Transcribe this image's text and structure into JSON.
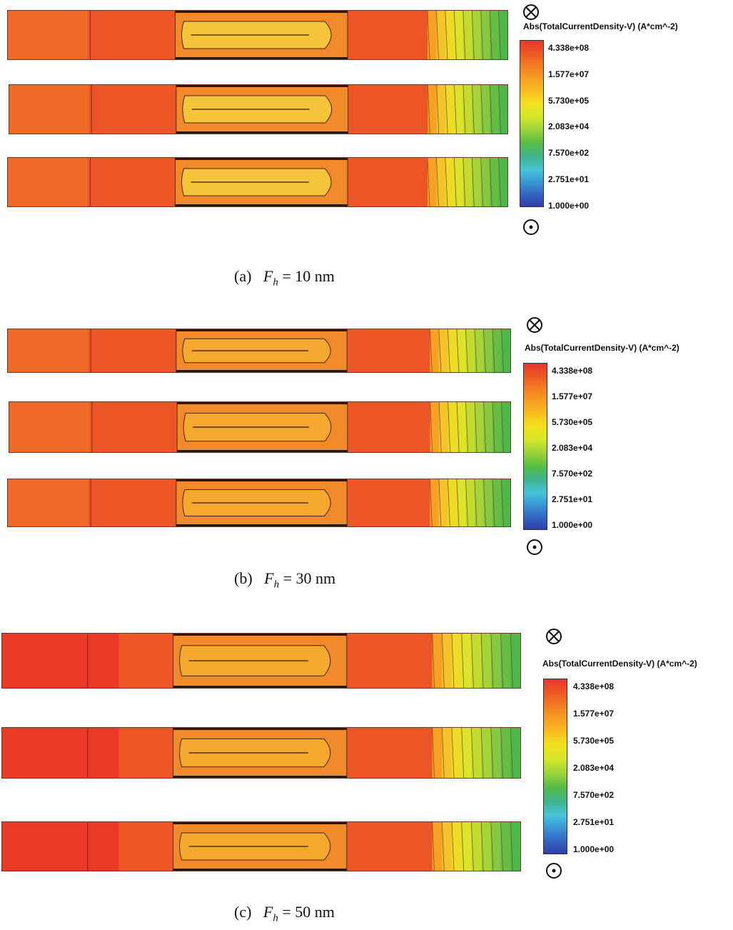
{
  "panels": [
    {
      "label": "(a)",
      "symbol_text": "F",
      "symbol_sub": "h",
      "value_text": "= 10 nm",
      "colorbar": {
        "title": "Abs(TotalCurrentDensity-V) (A*cm^-2)",
        "ticks": [
          "4.338e+08",
          "1.577e+07",
          "5.730e+05",
          "2.083e+04",
          "7.570e+02",
          "2.751e+01",
          "1.000e+00"
        ]
      }
    },
    {
      "label": "(b)",
      "symbol_text": "F",
      "symbol_sub": "h",
      "value_text": "= 30 nm",
      "colorbar": {
        "title": "Abs(TotalCurrentDensity-V) (A*cm^-2)",
        "ticks": [
          "4.338e+08",
          "1.577e+07",
          "5.730e+05",
          "2.083e+04",
          "7.570e+02",
          "2.751e+01",
          "1.000e+00"
        ]
      }
    },
    {
      "label": "(c)",
      "symbol_text": "F",
      "symbol_sub": "h",
      "value_text": "= 50 nm",
      "colorbar": {
        "title": "Abs(TotalCurrentDensity-V) (A*cm^-2)",
        "ticks": [
          "4.338e+08",
          "1.577e+07",
          "5.730e+05",
          "2.083e+04",
          "7.570e+02",
          "2.751e+01",
          "1.000e+00"
        ]
      }
    }
  ],
  "colors": {
    "body_red_orange": "#ec5526",
    "source_red": "#e83a27",
    "channel_orange": "#f08a2a",
    "core_yellow": "#f6c43a",
    "drain_green": "#4cb84a"
  }
}
